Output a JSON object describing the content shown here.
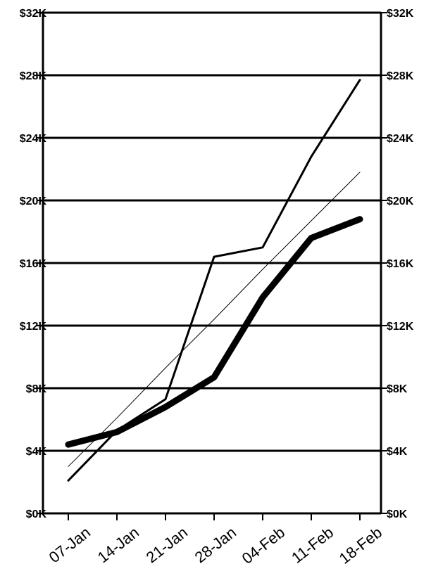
{
  "chart_data": {
    "type": "line",
    "title": "",
    "xlabel": "",
    "ylabel": "",
    "categories": [
      "07-Jan",
      "14-Jan",
      "21-Jan",
      "28-Jan",
      "04-Feb",
      "11-Feb",
      "18-Feb"
    ],
    "ylim": [
      0,
      32000
    ],
    "y_ticks": [
      0,
      4000,
      8000,
      12000,
      16000,
      20000,
      24000,
      28000,
      32000
    ],
    "y_tick_labels": [
      "$0K",
      "$4K",
      "$8K",
      "$12K",
      "$16K",
      "$20K",
      "$24K",
      "$28K",
      "$32K"
    ],
    "y_axes": "left and right, identical",
    "grid": "horizontal lines at each tick",
    "legend": "none",
    "series": [
      {
        "values": [
          2100,
          5300,
          7300,
          16400,
          17000,
          22800,
          27700
        ],
        "style": "medium"
      },
      {
        "values": [
          4400,
          5200,
          6800,
          8700,
          13800,
          17600,
          18800
        ],
        "style": "thick"
      },
      {
        "values": [
          3000,
          6100,
          9300,
          12400,
          15600,
          18700,
          21800
        ],
        "style": "thin trend"
      }
    ],
    "colors": {
      "line": "#000000",
      "background": "#ffffff"
    }
  }
}
